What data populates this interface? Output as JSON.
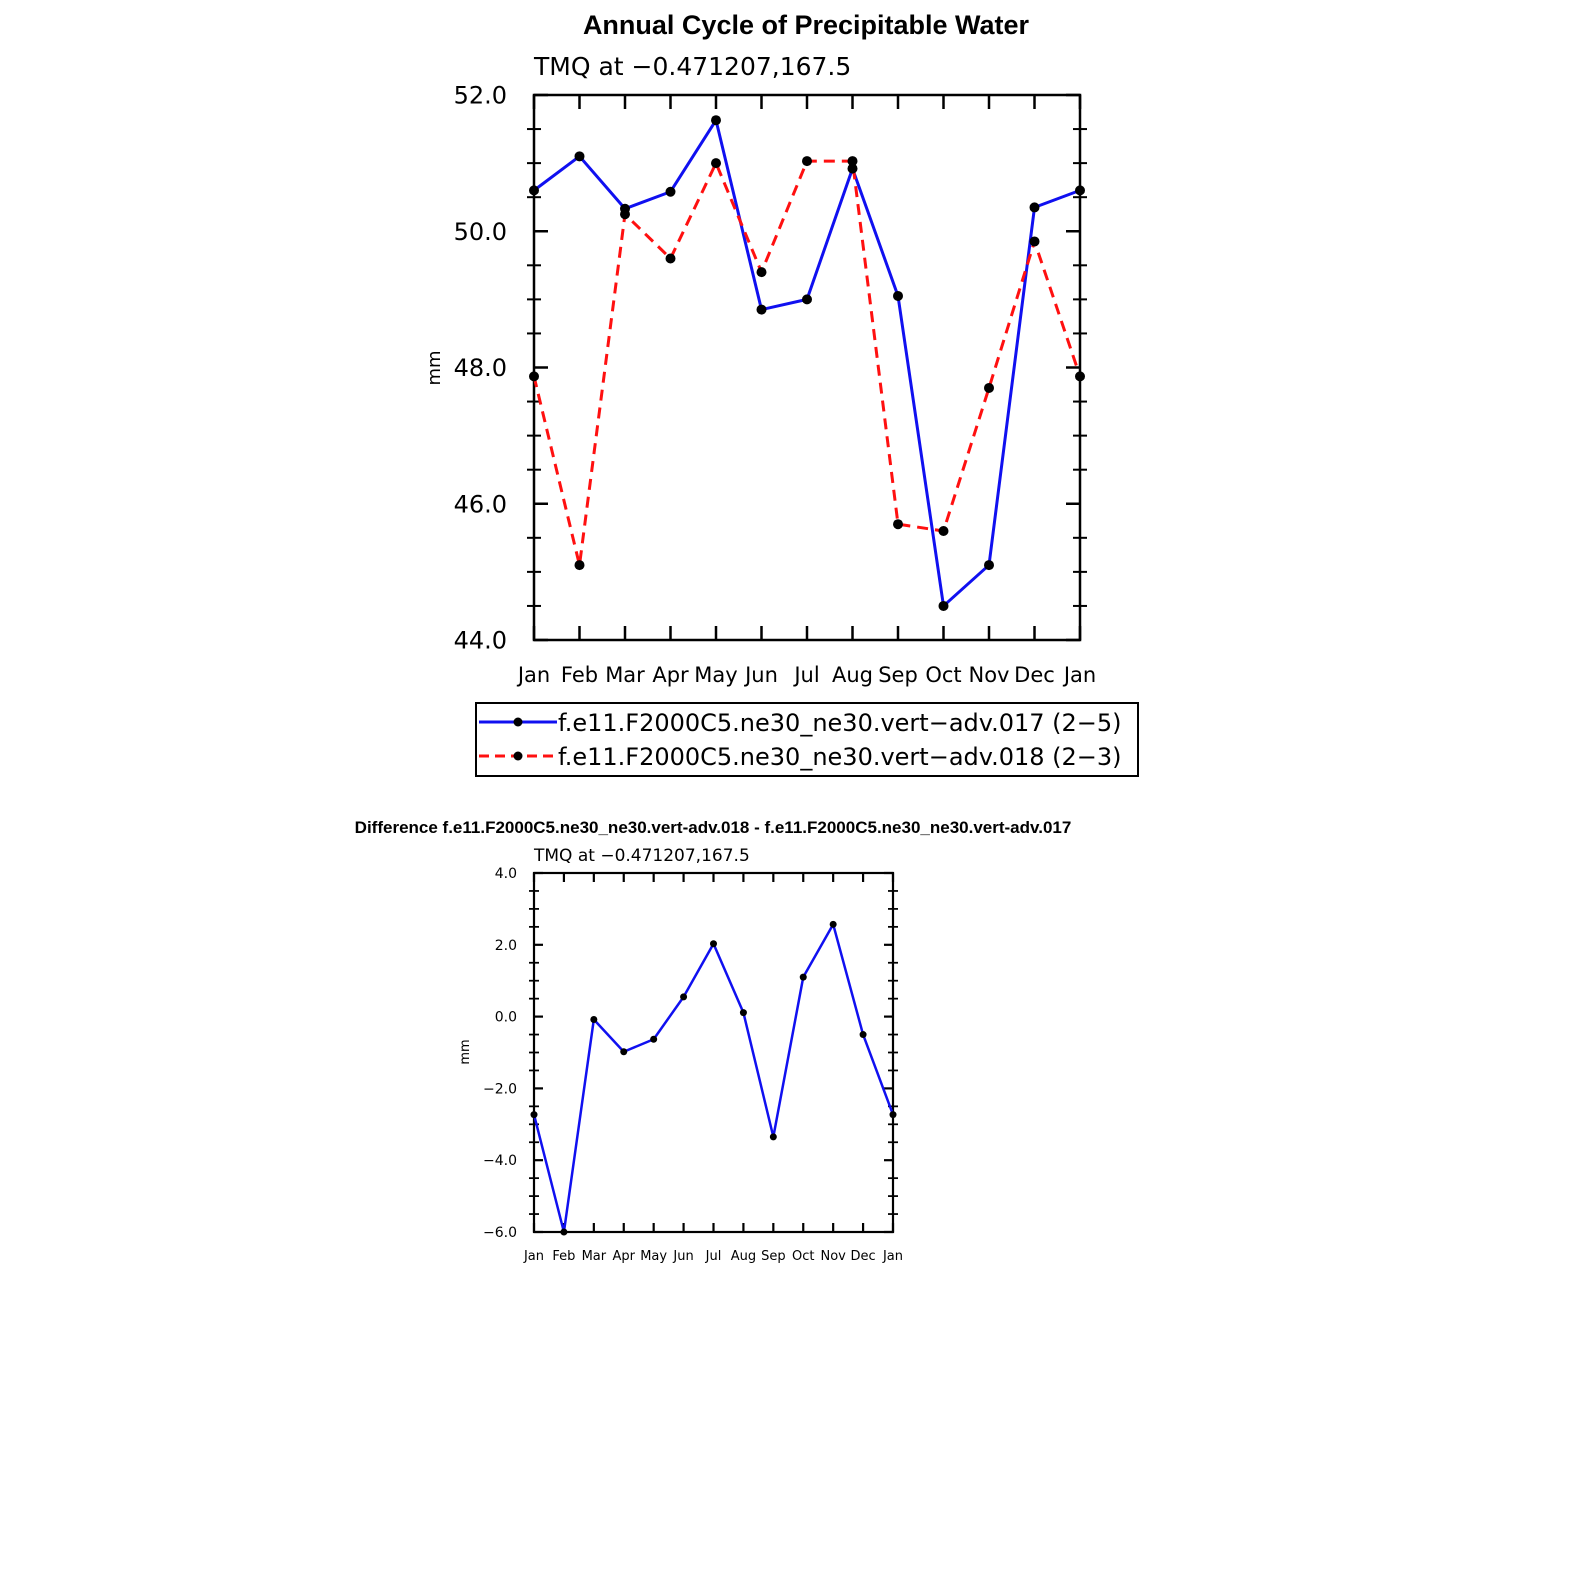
{
  "colors": {
    "series_017": "#1010f0",
    "series_018": "#ff1010",
    "marker": "#000000",
    "background": "#ffffff"
  },
  "chart_data": [
    {
      "type": "line",
      "title": "Annual Cycle of Precipitable Water",
      "subtitle": "TMQ at −0.471207,167.5",
      "ylabel": "mm",
      "xlabel": "",
      "categories": [
        "Jan",
        "Feb",
        "Mar",
        "Apr",
        "May",
        "Jun",
        "Jul",
        "Aug",
        "Sep",
        "Oct",
        "Nov",
        "Dec",
        "Jan"
      ],
      "ylim": [
        44.0,
        52.0
      ],
      "yticks": [
        "44.0",
        "46.0",
        "48.0",
        "50.0",
        "52.0"
      ],
      "grid": false,
      "legend": "bottom",
      "series": [
        {
          "name": "f.e11.F2000C5.ne30_ne30.vert−adv.017 (2−5)",
          "style": "solid",
          "color": "#1010f0",
          "values": [
            50.6,
            51.1,
            50.33,
            50.58,
            51.63,
            48.85,
            49.0,
            50.92,
            49.05,
            44.5,
            45.1,
            50.35,
            50.6
          ]
        },
        {
          "name": "f.e11.F2000C5.ne30_ne30.vert−adv.018 (2−3)",
          "style": "dashed",
          "color": "#ff1010",
          "values": [
            47.87,
            45.1,
            50.25,
            49.6,
            51.0,
            49.4,
            51.03,
            51.03,
            45.7,
            45.6,
            47.7,
            49.85,
            47.87
          ]
        }
      ]
    },
    {
      "type": "line",
      "title": "Difference f.e11.F2000C5.ne30_ne30.vert-adv.018 - f.e11.F2000C5.ne30_ne30.vert-adv.017",
      "subtitle": "TMQ at −0.471207,167.5",
      "ylabel": "mm",
      "xlabel": "",
      "categories": [
        "Jan",
        "Feb",
        "Mar",
        "Apr",
        "May",
        "Jun",
        "Jul",
        "Aug",
        "Sep",
        "Oct",
        "Nov",
        "Dec",
        "Jan"
      ],
      "ylim": [
        -6.0,
        4.0
      ],
      "yticks": [
        "−6.0",
        "−4.0",
        "−2.0",
        "0.0",
        "2.0",
        "4.0"
      ],
      "grid": false,
      "series": [
        {
          "color": "#1010f0",
          "style": "solid",
          "values": [
            -2.73,
            -6.0,
            -0.08,
            -0.98,
            -0.63,
            0.55,
            2.03,
            0.11,
            -3.35,
            1.1,
            2.57,
            -0.5,
            -2.73
          ]
        }
      ]
    }
  ]
}
